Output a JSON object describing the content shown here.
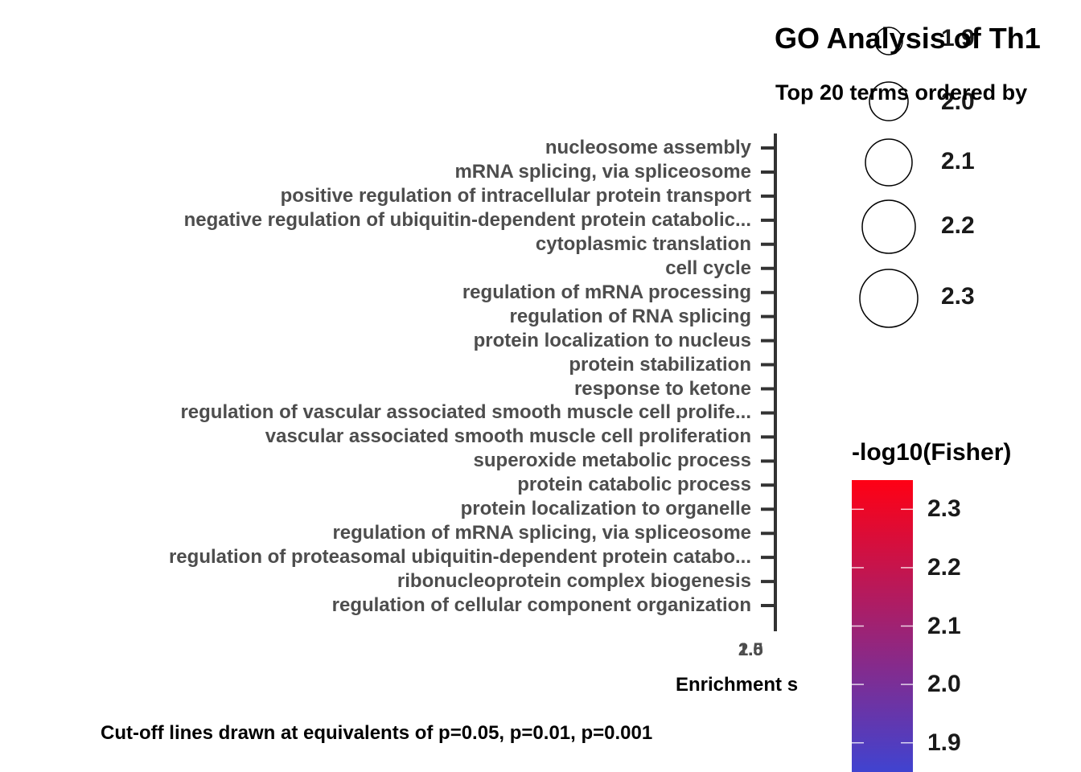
{
  "title": "GO Analysis of Th1",
  "subtitle": "Top 20 terms ordered by",
  "xlabel": "Enrichment s",
  "caption": "Cut-off lines drawn at equivalents of p=0.05, p=0.01, p=0.001",
  "colors": {
    "low": "#4043d0",
    "high": "#ff0014",
    "axis": "#333333",
    "text": "#4d4d4d"
  },
  "chart_data": {
    "type": "scatter",
    "title": "GO Analysis of Th1",
    "subtitle": "Top 20 terms ordered by",
    "xlabel": "Enrichment s",
    "ylabel": "",
    "x_tick_labels": [
      "2.5",
      "2.0",
      "1.5",
      "1.0"
    ],
    "categories": [
      "nucleosome assembly",
      "mRNA splicing, via spliceosome",
      "positive regulation of intracellular protein transport",
      "negative regulation of ubiquitin-dependent protein catabolic...",
      "cytoplasmic translation",
      "cell cycle",
      "regulation of mRNA processing",
      "regulation of RNA splicing",
      "protein localization to nucleus",
      "protein stabilization",
      "response to ketone",
      "regulation of vascular associated smooth muscle cell prolife...",
      "vascular associated smooth muscle cell proliferation",
      "superoxide metabolic process",
      "protein catabolic process",
      "protein localization to organelle",
      "regulation of mRNA splicing, via spliceosome",
      "regulation of proteasomal ubiquitin-dependent protein catabo...",
      "ribonucleoprotein complex biogenesis",
      "regulation of cellular component organization"
    ],
    "size_legend": {
      "values": [
        "1.9",
        "2.0",
        "2.1",
        "2.2",
        "2.3"
      ]
    },
    "color_legend": {
      "title": "-log10(Fisher)",
      "labels": [
        "2.3",
        "2.2",
        "2.1",
        "2.0",
        "1.9"
      ],
      "range": [
        1.85,
        2.35
      ]
    },
    "legend_position": "right"
  }
}
